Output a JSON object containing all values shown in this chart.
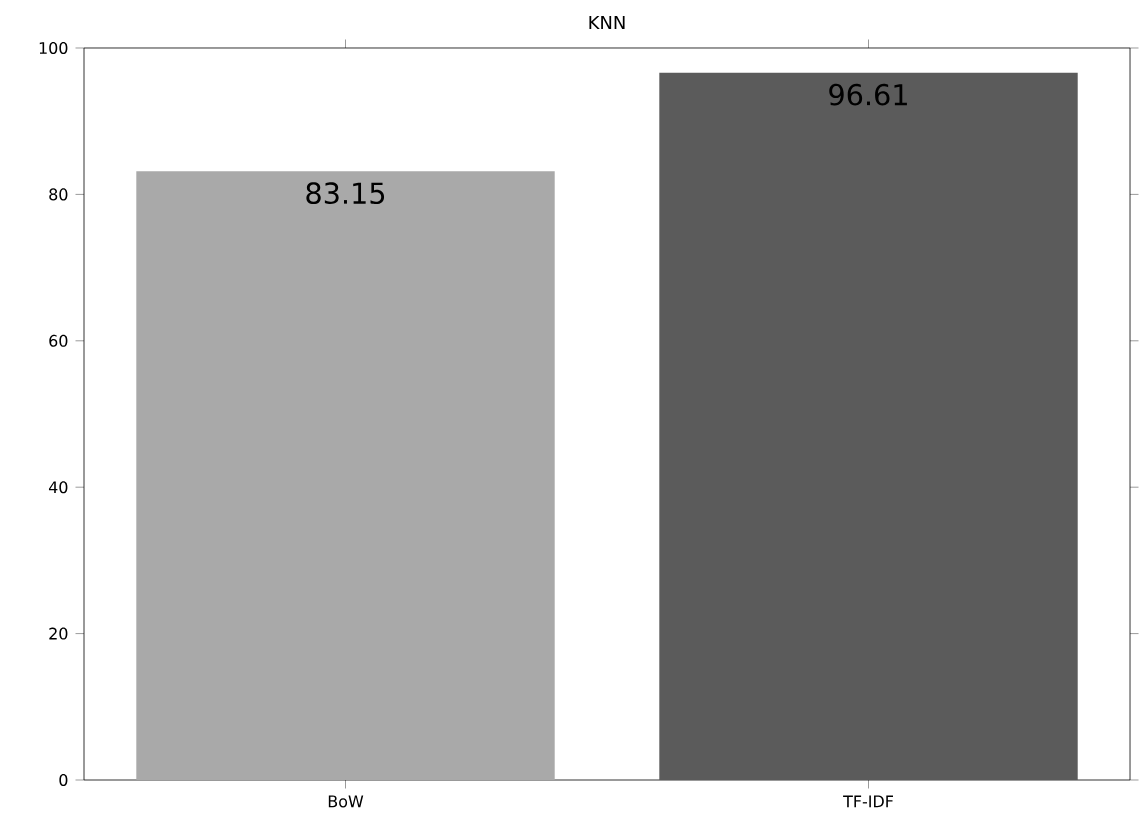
{
  "chart_data": {
    "type": "bar",
    "title": "KNN",
    "categories": [
      "BoW",
      "TF-IDF"
    ],
    "values": [
      83.15,
      96.61
    ],
    "colors": [
      "#a9a9a9",
      "#5b5b5b"
    ],
    "ylim": [
      0,
      100
    ],
    "yticks": [
      0,
      20,
      40,
      60,
      80,
      100
    ],
    "data_labels": true
  }
}
